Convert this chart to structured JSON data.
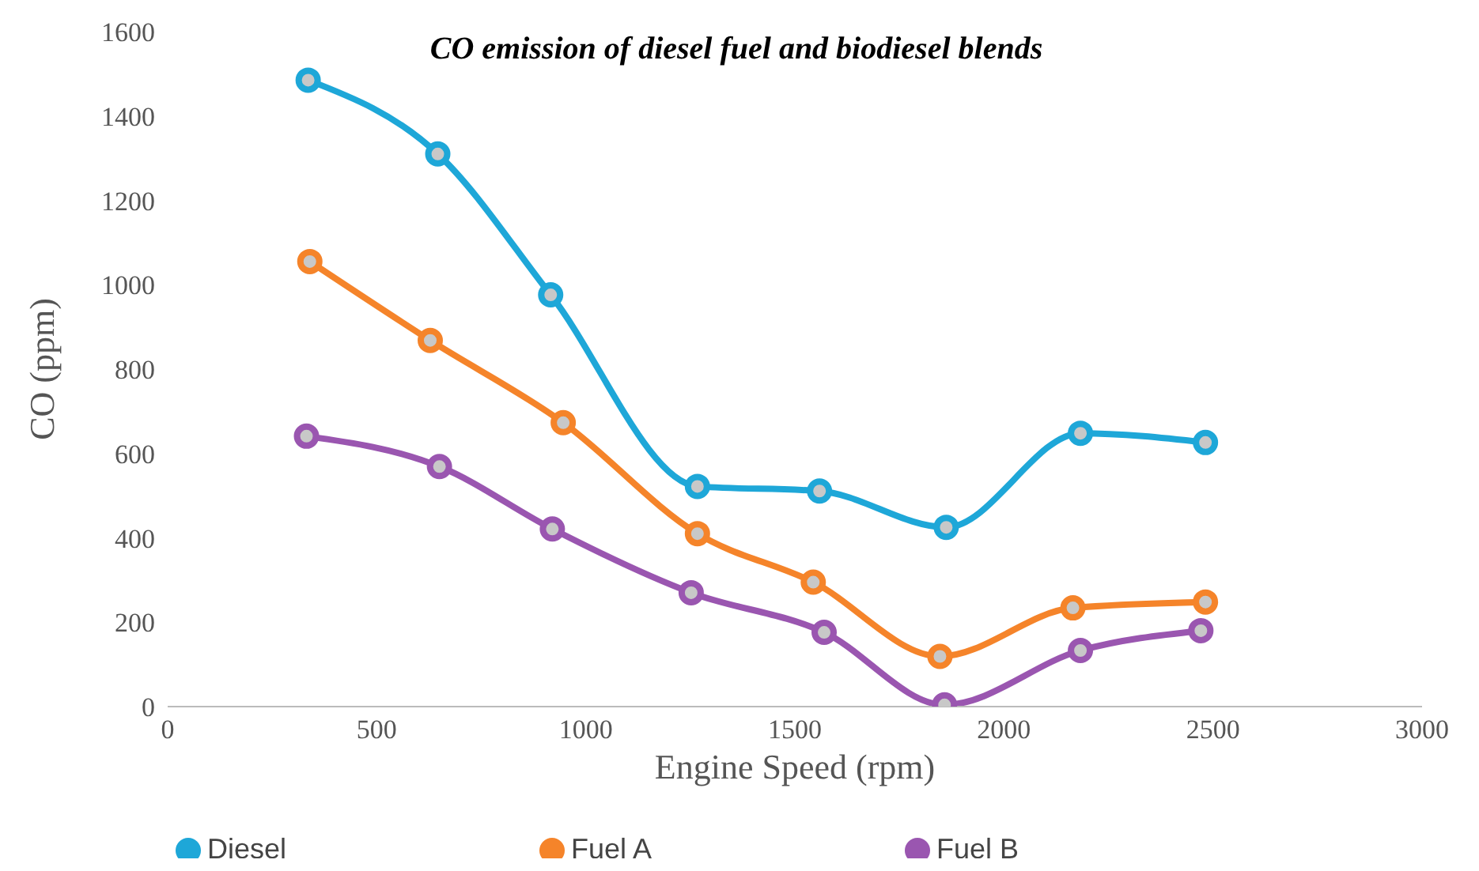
{
  "chart_data": {
    "type": "line",
    "title": "CO emission of diesel fuel and biodiesel blends",
    "xlabel": "Engine Speed (rpm)",
    "ylabel": "CO (ppm)",
    "xlim": [
      0,
      3000
    ],
    "xticks": [
      0,
      500,
      1000,
      1500,
      2000,
      2500,
      3000
    ],
    "ylim": [
      0,
      1600
    ],
    "yticks": [
      0,
      200,
      400,
      600,
      800,
      1000,
      1200,
      1400,
      1600
    ],
    "grid": false,
    "legend": "bottom",
    "marker": "circle",
    "line_style": "solid",
    "series": [
      {
        "name": "Diesel",
        "color": "#1ea7d8",
        "x": [
          336,
          646,
          916,
          1267,
          1559,
          1862,
          2183,
          2482
        ],
        "values": [
          1485,
          1310,
          976,
          522,
          511,
          425,
          648,
          626
        ]
      },
      {
        "name": "Fuel A",
        "color": "#f5842a",
        "x": [
          340,
          628,
          946,
          1267,
          1544,
          1847,
          2165,
          2482
        ],
        "values": [
          1055,
          868,
          673,
          410,
          295,
          119,
          234,
          248
        ]
      },
      {
        "name": "Fuel B",
        "color": "#9a56b0",
        "x": [
          332,
          650,
          920,
          1252,
          1570,
          1858,
          2183,
          2471
        ],
        "values": [
          641,
          569,
          421,
          270,
          176,
          4,
          133,
          180
        ]
      }
    ]
  }
}
